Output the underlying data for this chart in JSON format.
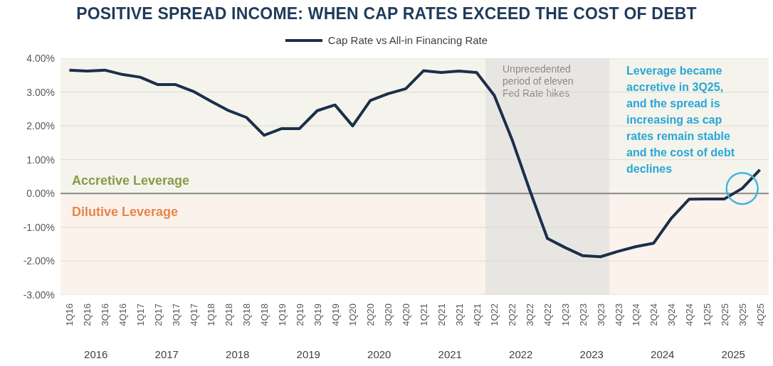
{
  "chart_data": {
    "type": "line",
    "title": "POSITIVE SPREAD INCOME: WHEN CAP RATES EXCEED THE COST OF DEBT",
    "categories": [
      "1Q16",
      "2Q16",
      "3Q16",
      "4Q16",
      "1Q17",
      "2Q17",
      "3Q17",
      "4Q17",
      "1Q18",
      "2Q18",
      "3Q18",
      "4Q18",
      "1Q19",
      "2Q19",
      "3Q19",
      "4Q19",
      "1Q20",
      "2Q20",
      "3Q20",
      "4Q20",
      "1Q21",
      "2Q21",
      "3Q21",
      "4Q21",
      "1Q22",
      "2Q22",
      "3Q22",
      "4Q22",
      "1Q23",
      "2Q23",
      "3Q23",
      "4Q23",
      "1Q24",
      "2Q24",
      "3Q24",
      "4Q24",
      "1Q25",
      "2Q25",
      "3Q25",
      "4Q25"
    ],
    "series": [
      {
        "name": "Cap Rate vs All-in Financing Rate",
        "color": "#1b2f4a",
        "values": [
          3.65,
          3.62,
          3.65,
          3.52,
          3.44,
          3.22,
          3.22,
          3.02,
          2.73,
          2.45,
          2.25,
          1.72,
          1.92,
          1.92,
          2.45,
          2.62,
          2.0,
          2.75,
          2.95,
          3.1,
          3.63,
          3.58,
          3.62,
          3.58,
          2.9,
          1.6,
          0.1,
          -1.33,
          -1.6,
          -1.84,
          -1.87,
          -1.71,
          -1.57,
          -1.47,
          -0.73,
          -0.17,
          -0.16,
          -0.16,
          0.15,
          0.7
        ]
      }
    ],
    "ylim": [
      -3,
      4
    ],
    "yticks": [
      {
        "value": -3,
        "label": "-3.00%"
      },
      {
        "value": -2,
        "label": "-2.00%"
      },
      {
        "value": -1,
        "label": "-1.00%"
      },
      {
        "value": 0,
        "label": "0.00%"
      },
      {
        "value": 1,
        "label": "1.00%"
      },
      {
        "value": 2,
        "label": "2.00%"
      },
      {
        "value": 3,
        "label": "3.00%"
      },
      {
        "value": 4,
        "label": "4.00%"
      }
    ],
    "grid": "y",
    "legend": "top",
    "bands": [
      {
        "axis": "y",
        "from": 0,
        "to": 4,
        "label": "Accretive Leverage",
        "color": "#f4f4ec"
      },
      {
        "axis": "y",
        "from": -3,
        "to": 0,
        "label": "Dilutive Leverage",
        "color": "#fbf2ec"
      },
      {
        "axis": "x",
        "from": "1Q22",
        "to": "3Q23",
        "label": "Unprecedented period of eleven Fed Rate hikes",
        "color": "#e8e6e3"
      }
    ],
    "ref_lines": [
      {
        "axis": "y",
        "value": 0,
        "color": "#8a8a8a"
      }
    ],
    "annotations": [
      "2016",
      "2017",
      "2018",
      "2019",
      "2020",
      "2021",
      "2022",
      "2023",
      "2024",
      "2025",
      {
        "text": "Leverage became accretive in 3Q25, and the spread is increasing as cap rates remain stable and the cost of debt declines",
        "x": "3Q25",
        "y": 0.15
      }
    ]
  }
}
